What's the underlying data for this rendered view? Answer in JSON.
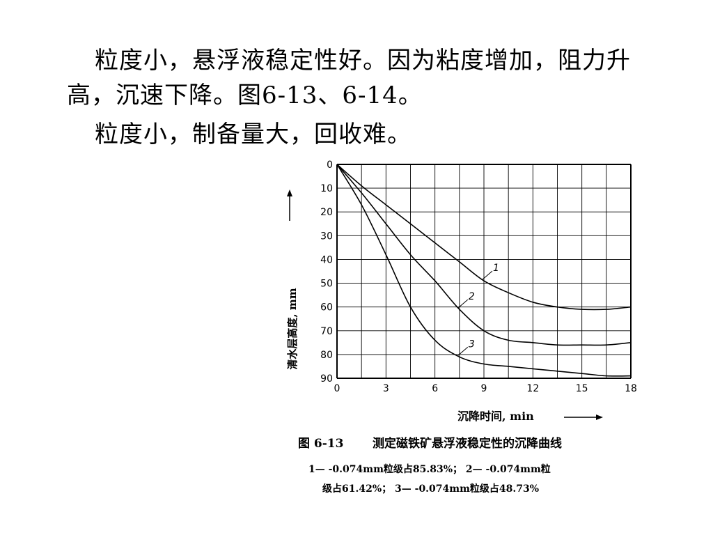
{
  "slide": {
    "para1": "粒度小，悬浮液稳定性好。因为粘度增加，阻力升高，沉速下降。图6-13、6-14。",
    "para2": "粒度小，制备量大，回收难。"
  },
  "chart_data": {
    "type": "line",
    "caption_number": "图 6-13",
    "caption_title": "测定磁铁矿悬浮液稳定性的沉降曲线",
    "legend_line1": "1— -0.074mm粒级占85.83%； 2— -0.074mm粒",
    "legend_line2": "级占61.42%； 3— -0.074mm粒级占48.73%",
    "xlabel": "沉降时间, min",
    "ylabel": "清水层高度, mm",
    "xlim": [
      0,
      18
    ],
    "ylim": [
      0,
      90
    ],
    "y_inverted": true,
    "grid": true,
    "xticks": [
      "0",
      "3",
      "6",
      "9",
      "12",
      "15",
      "18"
    ],
    "yticks": [
      "0",
      "10",
      "20",
      "30",
      "40",
      "50",
      "60",
      "70",
      "80",
      "90"
    ],
    "series": [
      {
        "name": "1",
        "x": [
          0,
          1.5,
          3,
          4.5,
          6,
          7.5,
          9,
          10.5,
          12,
          13.5,
          15,
          16.5,
          18
        ],
        "y": [
          0,
          9,
          17,
          25,
          33,
          41,
          49,
          54,
          58,
          60,
          61,
          61,
          60
        ]
      },
      {
        "name": "2",
        "x": [
          0,
          1.5,
          3,
          4.5,
          6,
          7.5,
          9,
          10.5,
          12,
          13.5,
          15,
          16.5,
          18
        ],
        "y": [
          0,
          12,
          25,
          38,
          49,
          61,
          70,
          74,
          75,
          76,
          76,
          76,
          75
        ]
      },
      {
        "name": "3",
        "x": [
          0,
          1.5,
          3,
          4.5,
          6,
          7.5,
          9,
          10.5,
          12,
          13.5,
          15,
          16.5,
          18
        ],
        "y": [
          0,
          17,
          38,
          60,
          74,
          81,
          84,
          85,
          86,
          87,
          88,
          89,
          89
        ]
      }
    ]
  }
}
